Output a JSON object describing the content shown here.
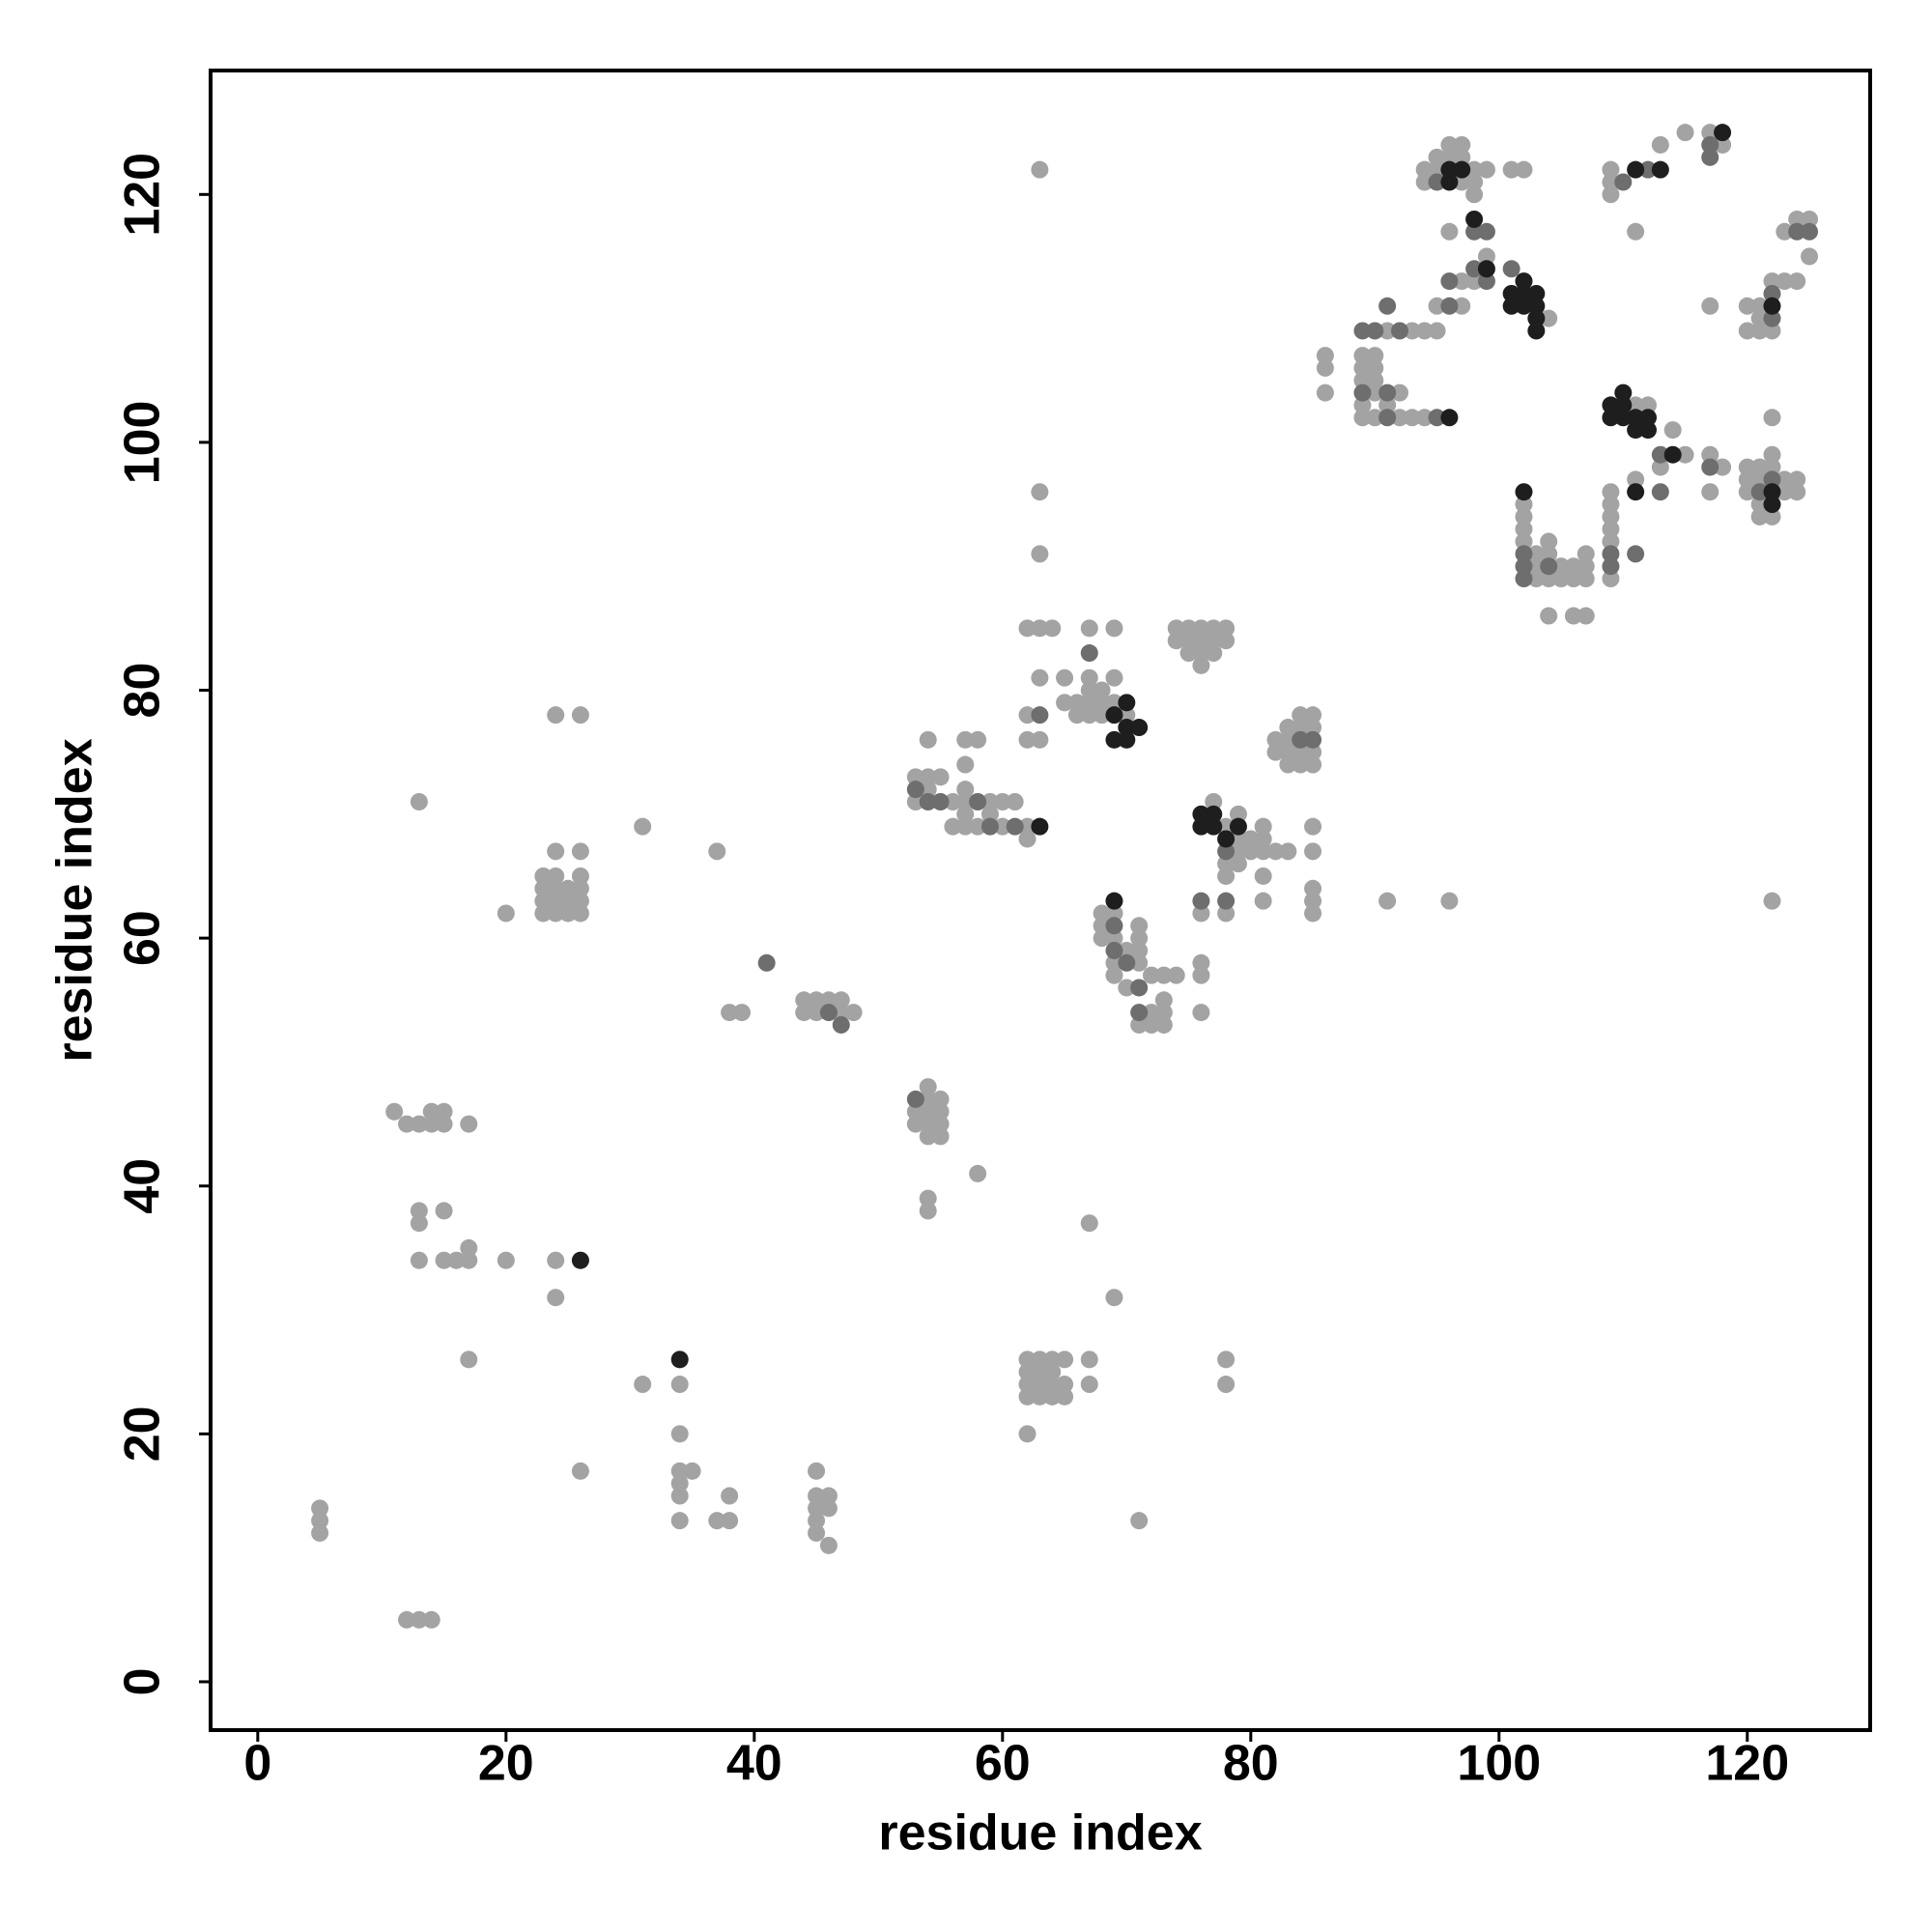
{
  "chart_data": {
    "type": "scatter",
    "x_label": "residue index",
    "y_label": "residue index",
    "xlim": [
      -3.8,
      129.9
    ],
    "ylim": [
      -3.9,
      130
    ],
    "xticks": [
      0,
      20,
      40,
      60,
      80,
      100,
      120
    ],
    "yticks": [
      0,
      20,
      40,
      60,
      80,
      100,
      120
    ],
    "grid": false,
    "series": [
      {
        "color": "#a3a3a3",
        "x": [
          5,
          5,
          5,
          12,
          13,
          14,
          11,
          12,
          13,
          14,
          14,
          15,
          15,
          17,
          13,
          13,
          15,
          13,
          15,
          16,
          17,
          17,
          20,
          17,
          13,
          20,
          23,
          23,
          23,
          23,
          24,
          24,
          24,
          24,
          24,
          25,
          25,
          25,
          26,
          26,
          26,
          26,
          26,
          24,
          26,
          24,
          24,
          26,
          31,
          37,
          38,
          39,
          31,
          34,
          34,
          34,
          34,
          34,
          34,
          35,
          37,
          38,
          38,
          45,
          45,
          45,
          45,
          45,
          46,
          46,
          46,
          44,
          44,
          45,
          45,
          46,
          47,
          47,
          48,
          53,
          53,
          54,
          54,
          54,
          54,
          54,
          55,
          55,
          55,
          55,
          54,
          54,
          58,
          53,
          53,
          54,
          54,
          55,
          54,
          56,
          56,
          57,
          57,
          57,
          57,
          57,
          57,
          58,
          58,
          59,
          59,
          60,
          60,
          61,
          62,
          62,
          62,
          62,
          63,
          63,
          62,
          63,
          64,
          63,
          63,
          63,
          65,
          65,
          66,
          66,
          67,
          67,
          67,
          67,
          67,
          68,
          68,
          68,
          69,
          69,
          69,
          70,
          62,
          62,
          62,
          62,
          62,
          63,
          63,
          63,
          63,
          64,
          64,
          64,
          64,
          65,
          65,
          65,
          67,
          67,
          67,
          69,
          71,
          68,
          68,
          68,
          69,
          69,
          69,
          69,
          70,
          70,
          71,
          71,
          71,
          71,
          71,
          72,
          72,
          72,
          73,
          73,
          73,
          73,
          74,
          76,
          76,
          76,
          74,
          74,
          75,
          75,
          75,
          76,
          76,
          76,
          76,
          77,
          77,
          77,
          78,
          78,
          76,
          77,
          78,
          78,
          78,
          78,
          79,
          79,
          79,
          79,
          80,
          80,
          81,
          81,
          81,
          81,
          81,
          82,
          83,
          85,
          85,
          85,
          85,
          85,
          82,
          82,
          83,
          83,
          83,
          83,
          84,
          84,
          84,
          84,
          85,
          85,
          85,
          85,
          78,
          78,
          91,
          96,
          86,
          86,
          86,
          89,
          89,
          89,
          89,
          89,
          90,
          90,
          90,
          90,
          90,
          91,
          91,
          92,
          92,
          93,
          93,
          94,
          94,
          95,
          95,
          97,
          97,
          98,
          99,
          96,
          99,
          94,
          94,
          95,
          95,
          96,
          96,
          97,
          97,
          97,
          98,
          98,
          98,
          101,
          102,
          104,
          102,
          102,
          102,
          102,
          103,
          103,
          103,
          104,
          104,
          104,
          104,
          105,
          105,
          106,
          106,
          106,
          107,
          107,
          107,
          107,
          109,
          109,
          109,
          109,
          109,
          109,
          111,
          112,
          113,
          114,
          111,
          115,
          109,
          109,
          109,
          111,
          113,
          115,
          117,
          118,
          117,
          117,
          117,
          118,
          120,
          120,
          121,
          121,
          121,
          122,
          122,
          123,
          124,
          123,
          124,
          125,
          125,
          122,
          122,
          120,
          120,
          120,
          121,
          121,
          121,
          121,
          122,
          122,
          122,
          123,
          123,
          124,
          124
        ],
        "values": [
          12,
          13,
          14,
          5,
          5,
          5,
          46,
          45,
          45,
          45,
          46,
          46,
          45,
          45,
          38,
          37,
          38,
          34,
          34,
          34,
          34,
          35,
          34,
          26,
          71,
          62,
          62,
          63,
          64,
          65,
          62,
          63,
          64,
          65,
          67,
          62,
          63,
          64,
          62,
          63,
          64,
          65,
          67,
          78,
          78,
          34,
          31,
          17,
          69,
          67,
          54,
          54,
          24,
          24,
          20,
          17,
          16,
          15,
          13,
          17,
          13,
          13,
          15,
          17,
          15,
          14,
          13,
          12,
          15,
          14,
          11,
          54,
          55,
          54,
          55,
          55,
          54,
          55,
          54,
          45,
          46,
          44,
          45,
          46,
          47,
          48,
          44,
          45,
          46,
          47,
          39,
          38,
          41,
          71,
          73,
          72,
          73,
          73,
          76,
          69,
          71,
          69,
          70,
          71,
          72,
          74,
          76,
          69,
          76,
          70,
          71,
          69,
          71,
          71,
          68,
          69,
          76,
          78,
          76,
          81,
          85,
          85,
          85,
          91,
          96,
          122,
          79,
          81,
          78,
          79,
          78,
          79,
          80,
          81,
          85,
          78,
          79,
          80,
          79,
          81,
          85,
          78,
          20,
          23,
          24,
          25,
          26,
          23,
          24,
          25,
          26,
          23,
          24,
          25,
          26,
          24,
          26,
          23,
          24,
          26,
          37,
          31,
          13,
          60,
          61,
          62,
          57,
          58,
          60,
          62,
          56,
          59,
          53,
          58,
          59,
          60,
          61,
          53,
          54,
          57,
          53,
          54,
          55,
          57,
          57,
          58,
          57,
          54,
          84,
          85,
          83,
          84,
          85,
          82,
          83,
          84,
          85,
          83,
          84,
          85,
          84,
          85,
          62,
          71,
          62,
          65,
          66,
          69,
          66,
          67,
          68,
          70,
          67,
          68,
          63,
          65,
          67,
          68,
          69,
          67,
          67,
          69,
          67,
          64,
          63,
          62,
          75,
          76,
          74,
          75,
          76,
          77,
          74,
          75,
          77,
          78,
          74,
          75,
          77,
          78,
          26,
          24,
          63,
          63,
          104,
          106,
          107,
          102,
          103,
          105,
          106,
          107,
          102,
          104,
          105,
          106,
          107,
          103,
          109,
          102,
          104,
          102,
          109,
          102,
          109,
          109,
          111,
          111,
          113,
          113,
          115,
          117,
          122,
          121,
          122,
          122,
          123,
          123,
          124,
          121,
          123,
          124,
          120,
          121,
          122,
          122,
          122,
          110,
          95,
          94,
          93,
          92,
          89,
          90,
          91,
          89,
          91,
          92,
          86,
          89,
          90,
          89,
          90,
          86,
          86,
          89,
          90,
          91,
          89,
          92,
          93,
          94,
          95,
          96,
          103,
          103,
          98,
          101,
          97,
          99,
          120,
          121,
          122,
          117,
          124,
          125,
          125,
          124,
          111,
          96,
          99,
          98,
          109,
          111,
          109,
          110,
          111,
          109,
          113,
          113,
          113,
          117,
          118,
          118,
          115,
          102,
          63,
          96,
          97,
          98,
          94,
          95,
          97,
          98,
          94,
          98,
          99,
          96,
          97,
          96,
          97
        ]
      },
      {
        "color": "#6e6e6e",
        "x": [
          89,
          90,
          91,
          89,
          91,
          95,
          96,
          98,
          99,
          99,
          98,
          101,
          102,
          102,
          102,
          109,
          109,
          111,
          113,
          110,
          112,
          117,
          117,
          122,
          122,
          125,
          124,
          121,
          122,
          63,
          67,
          69,
          69,
          70,
          71,
          71,
          76,
          78,
          78,
          85,
          84,
          53,
          54,
          55,
          58,
          59,
          61,
          41,
          47,
          53,
          46,
          113,
          117,
          104,
          96,
          92,
          91,
          95
        ],
        "values": [
          109,
          109,
          111,
          104,
          104,
          121,
          113,
          114,
          113,
          117,
          117,
          114,
          89,
          90,
          91,
          90,
          91,
          91,
          96,
          121,
          122,
          123,
          124,
          110,
          112,
          117,
          117,
          96,
          97,
          78,
          83,
          59,
          61,
          58,
          54,
          56,
          63,
          63,
          67,
          76,
          76,
          72,
          71,
          71,
          71,
          69,
          69,
          58,
          53,
          47,
          54,
          99,
          98,
          90,
          111,
          109,
          102,
          102
        ]
      },
      {
        "color": "#1e1e1e",
        "x": [
          26,
          34,
          63,
          69,
          69,
          69,
          70,
          70,
          71,
          70,
          76,
          76,
          77,
          77,
          78,
          79,
          96,
          96,
          96,
          97,
          98,
          99,
          101,
          101,
          102,
          102,
          102,
          103,
          103,
          103,
          103,
          102,
          109,
          109,
          110,
          110,
          110,
          111,
          111,
          112,
          112,
          111,
          113,
          122,
          122,
          122,
          118,
          114,
          111
        ],
        "values": [
          34,
          26,
          69,
          63,
          78,
          76,
          76,
          77,
          77,
          79,
          69,
          70,
          69,
          70,
          68,
          69,
          102,
          121,
          122,
          122,
          118,
          114,
          111,
          112,
          111,
          112,
          113,
          109,
          110,
          111,
          112,
          96,
          102,
          103,
          102,
          103,
          104,
          101,
          102,
          101,
          102,
          122,
          122,
          111,
          96,
          95,
          125,
          99,
          96
        ]
      }
    ]
  }
}
